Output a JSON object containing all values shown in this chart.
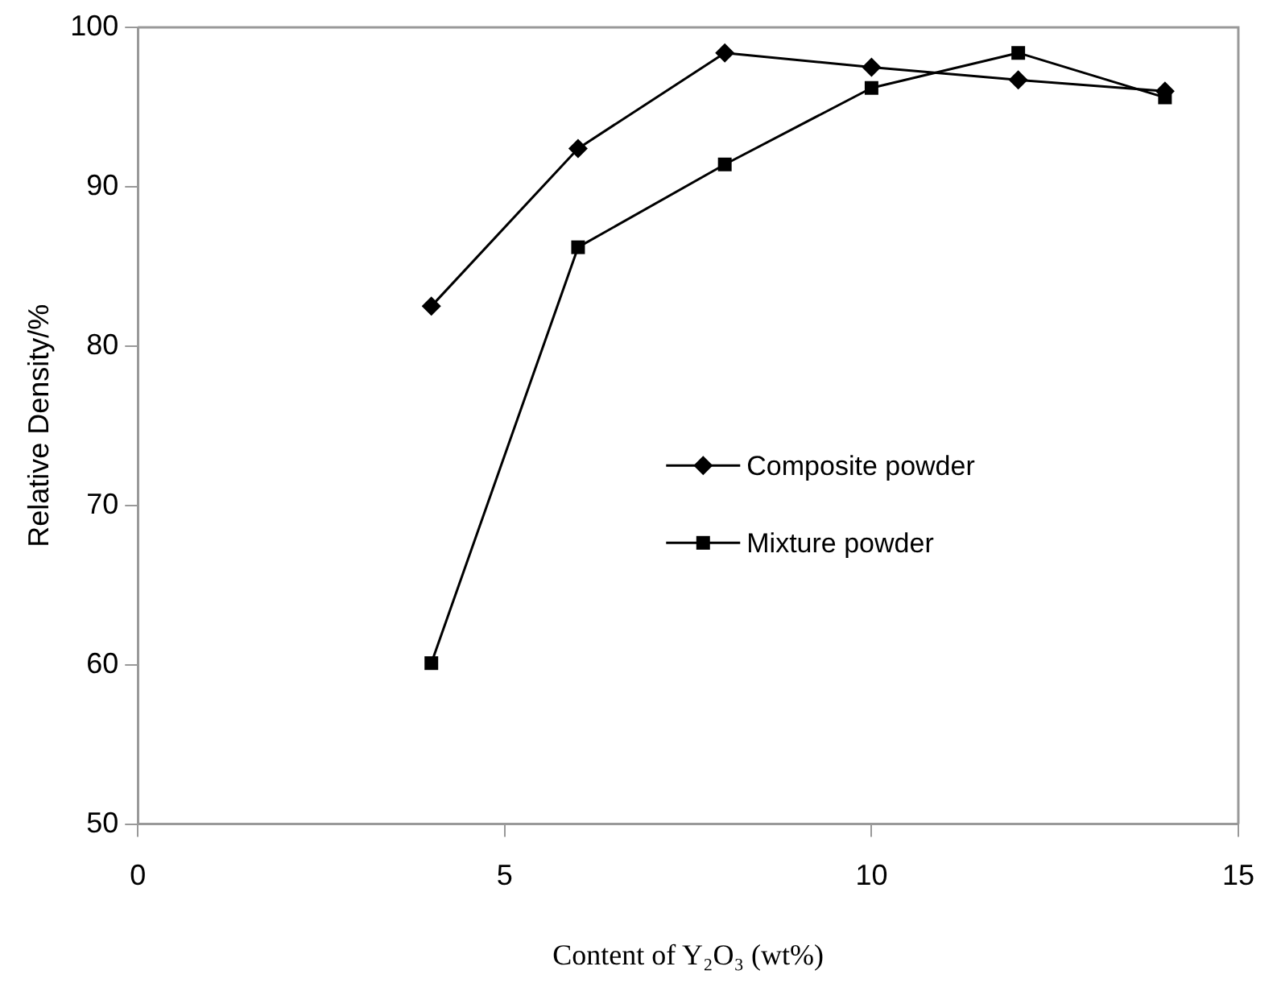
{
  "chart_data": {
    "type": "line",
    "xlabel": "Content of Y₂O₃ (wt%)",
    "ylabel": "Relative Density/%",
    "x": [
      4,
      6,
      8,
      10,
      12,
      14
    ],
    "series": [
      {
        "name": "Composite powder",
        "color": "#000000",
        "marker": "diamond",
        "values": [
          82.5,
          92.4,
          98.4,
          97.5,
          96.7,
          96.0
        ]
      },
      {
        "name": "Mixture powder",
        "color": "#000000",
        "marker": "square",
        "values": [
          60.1,
          86.2,
          91.4,
          96.2,
          98.4,
          95.6
        ]
      }
    ],
    "xlim": [
      0,
      15
    ],
    "xticks": [
      0,
      5,
      10,
      15
    ],
    "ylim": [
      50,
      100
    ],
    "yticks": [
      50,
      60,
      70,
      80,
      90,
      100
    ],
    "grid": false,
    "legend": "right",
    "line_style": "solid"
  }
}
